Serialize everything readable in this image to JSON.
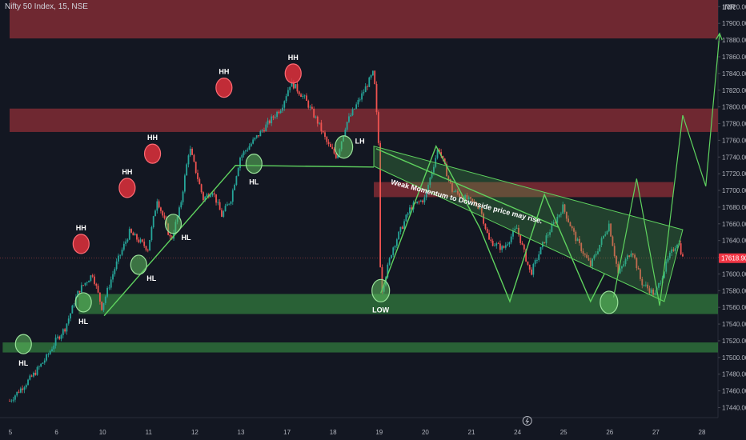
{
  "header": {
    "symbol_title": "Nifty 50 Index, 15, NSE",
    "currency": "INR"
  },
  "colors": {
    "background": "#131722",
    "up": "#26a69a",
    "down": "#ef5350",
    "axis_text": "#b2b5be",
    "resistance_zone": "#7a2a33",
    "support_zone": "#2e6e3a",
    "trend_line": "#5fd35f",
    "pivot_high": "#e0303b",
    "pivot_low": "#5fbf5f",
    "price_tag": "#f23645",
    "annotation_text": "#ffffff"
  },
  "chart_data": {
    "type": "candlestick",
    "title": "Nifty 50 Index, 15, NSE",
    "currency": "INR",
    "x_tick_labels": [
      "5",
      "6",
      "10",
      "11",
      "12",
      "13",
      "17",
      "18",
      "19",
      "20",
      "21",
      "24",
      "25",
      "26",
      "27",
      "28"
    ],
    "y_ticks": [
      17440,
      17460,
      17480,
      17500,
      17520,
      17540,
      17560,
      17580,
      17600,
      17620,
      17640,
      17660,
      17680,
      17700,
      17720,
      17740,
      17760,
      17780,
      17800,
      17820,
      17840,
      17860,
      17880,
      17900,
      17920
    ],
    "ylim": [
      17428,
      17928
    ],
    "last_price": 17618.9,
    "price_path": [
      [
        0,
        17448
      ],
      [
        0.5,
        17478
      ],
      [
        0.8,
        17500
      ],
      [
        1.0,
        17520
      ],
      [
        1.2,
        17535
      ],
      [
        1.5,
        17580
      ],
      [
        1.8,
        17600
      ],
      [
        2.0,
        17560
      ],
      [
        2.3,
        17610
      ],
      [
        2.6,
        17650
      ],
      [
        3.0,
        17630
      ],
      [
        3.2,
        17690
      ],
      [
        3.5,
        17640
      ],
      [
        3.7,
        17680
      ],
      [
        3.9,
        17752
      ],
      [
        4.2,
        17690
      ],
      [
        4.4,
        17700
      ],
      [
        4.6,
        17670
      ],
      [
        4.8,
        17690
      ],
      [
        5.0,
        17740
      ],
      [
        5.3,
        17760
      ],
      [
        5.6,
        17780
      ],
      [
        5.9,
        17800
      ],
      [
        6.1,
        17830
      ],
      [
        6.4,
        17810
      ],
      [
        6.7,
        17780
      ],
      [
        6.9,
        17755
      ],
      [
        7.1,
        17740
      ],
      [
        7.3,
        17780
      ],
      [
        7.6,
        17810
      ],
      [
        7.9,
        17842
      ],
      [
        8.0,
        17757
      ],
      [
        8.05,
        17575
      ],
      [
        8.3,
        17630
      ],
      [
        8.7,
        17680
      ],
      [
        9.0,
        17690
      ],
      [
        9.3,
        17752
      ],
      [
        9.6,
        17700
      ],
      [
        9.9,
        17690
      ],
      [
        10.2,
        17680
      ],
      [
        10.4,
        17640
      ],
      [
        10.7,
        17630
      ],
      [
        11.0,
        17655
      ],
      [
        11.3,
        17600
      ],
      [
        11.6,
        17640
      ],
      [
        12.0,
        17680
      ],
      [
        12.3,
        17640
      ],
      [
        12.6,
        17610
      ],
      [
        13.0,
        17660
      ],
      [
        13.2,
        17600
      ],
      [
        13.5,
        17630
      ],
      [
        13.7,
        17590
      ],
      [
        14.0,
        17575
      ],
      [
        14.3,
        17620
      ],
      [
        14.5,
        17640
      ],
      [
        14.6,
        17618.9
      ]
    ],
    "zones": [
      {
        "kind": "resistance",
        "x0": 0,
        "x1": 15.5,
        "y0": 17882,
        "y1": 17928
      },
      {
        "kind": "resistance",
        "x0": 0,
        "x1": 15.5,
        "y0": 17770,
        "y1": 17798
      },
      {
        "kind": "resistance",
        "x0": 7.9,
        "x1": 14.4,
        "y0": 17692,
        "y1": 17710
      },
      {
        "kind": "support",
        "x0": 1.5,
        "x1": 15.5,
        "y0": 17552,
        "y1": 17576
      },
      {
        "kind": "support",
        "x0": -0.15,
        "x1": 15.5,
        "y0": 17506,
        "y1": 17518
      }
    ],
    "trend_channel": [
      [
        7.9,
        17753
      ],
      [
        14.6,
        17653
      ],
      [
        14.2,
        17567
      ],
      [
        7.9,
        17729
      ]
    ],
    "trend_lines": [
      {
        "role": "rising-support",
        "points": [
          [
            2.05,
            17550
          ],
          [
            4.9,
            17730
          ],
          [
            7.9,
            17728
          ]
        ]
      },
      {
        "role": "falling-resistance",
        "points": [
          [
            7.95,
            17750
          ],
          [
            11.9,
            17656
          ]
        ]
      },
      {
        "role": "range-zigzag",
        "points": [
          [
            8.05,
            17577
          ],
          [
            9.25,
            17753
          ],
          [
            10.2,
            17655
          ],
          [
            10.85,
            17567
          ],
          [
            11.6,
            17695
          ],
          [
            12.6,
            17567
          ],
          [
            12.9,
            17600
          ]
        ]
      }
    ],
    "projection_path": [
      [
        13.1,
        17572
      ],
      [
        13.6,
        17714
      ],
      [
        14.1,
        17562
      ],
      [
        14.6,
        17790
      ],
      [
        15.1,
        17705
      ],
      [
        15.4,
        17888
      ]
    ],
    "pivots": [
      {
        "label": "HH",
        "kind": "high",
        "x": 1.55,
        "y": 17636
      },
      {
        "label": "HH",
        "kind": "high",
        "x": 2.55,
        "y": 17703
      },
      {
        "label": "HH",
        "kind": "high",
        "x": 3.1,
        "y": 17744
      },
      {
        "label": "HH",
        "kind": "high",
        "x": 4.65,
        "y": 17823
      },
      {
        "label": "HH",
        "kind": "high",
        "x": 6.15,
        "y": 17840
      },
      {
        "label": "HL",
        "kind": "low",
        "x": 0.3,
        "y": 17516
      },
      {
        "label": "HL",
        "kind": "low",
        "x": 1.6,
        "y": 17566
      },
      {
        "label": "HL",
        "kind": "low",
        "x": 2.8,
        "y": 17611
      },
      {
        "label": "HL",
        "kind": "low",
        "x": 3.55,
        "y": 17660
      },
      {
        "label": "HL",
        "kind": "low",
        "x": 5.3,
        "y": 17732
      },
      {
        "label": "LOW",
        "kind": "low",
        "x": 8.05,
        "y": 17580
      },
      {
        "label": "LH",
        "kind": "low",
        "x": 7.25,
        "y": 17752
      },
      {
        "label": "",
        "kind": "low",
        "x": 13.0,
        "y": 17566
      }
    ],
    "annotations": [
      {
        "text": "Weak Momentum to Downside price may rise.",
        "x": 9.9,
        "y": 17684,
        "angle": 14.7
      }
    ]
  }
}
